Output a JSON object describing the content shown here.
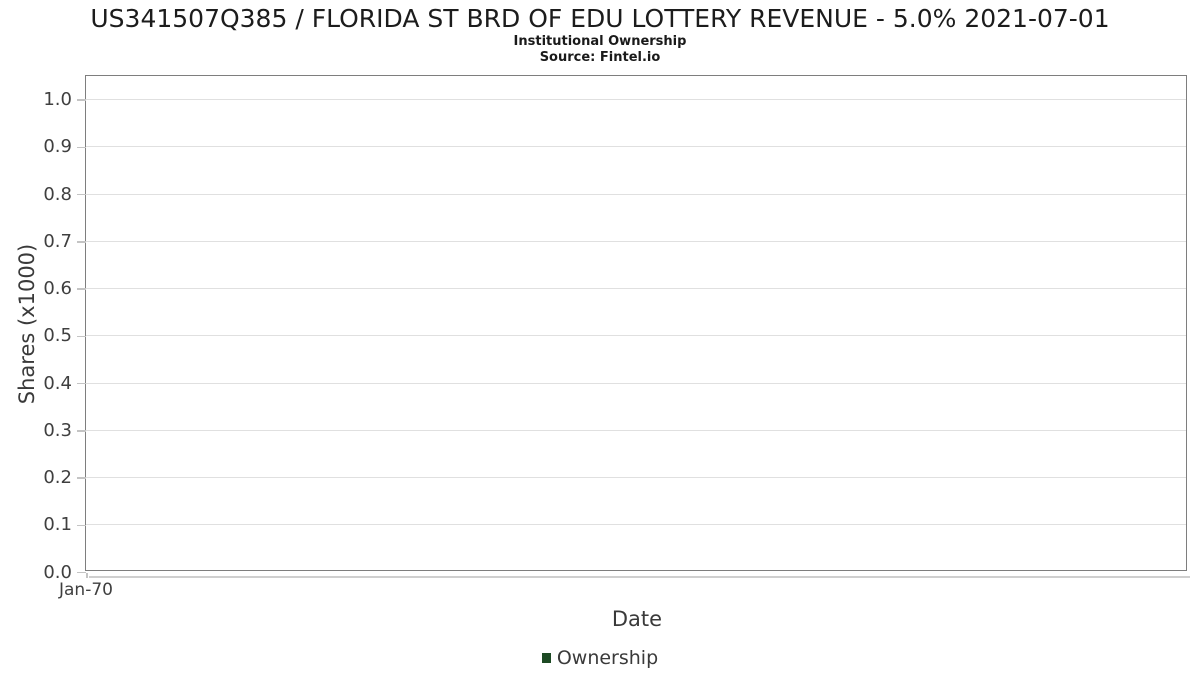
{
  "header": {
    "title": "US341507Q385 / FLORIDA ST BRD OF EDU LOTTERY REVENUE - 5.0% 2021-07-01",
    "subtitle": "Institutional Ownership",
    "source": "Source: Fintel.io"
  },
  "chart_data": {
    "type": "line",
    "title": "US341507Q385 / FLORIDA ST BRD OF EDU LOTTERY REVENUE - 5.0% 2021-07-01",
    "subtitle": "Institutional Ownership",
    "source": "Source: Fintel.io",
    "xlabel": "Date",
    "ylabel": "Shares (x1000)",
    "x_ticks": [
      "Jan-70"
    ],
    "y_ticks": [
      "0.0",
      "0.1",
      "0.2",
      "0.3",
      "0.4",
      "0.5",
      "0.6",
      "0.7",
      "0.8",
      "0.9",
      "1.0"
    ],
    "ylim": [
      0,
      1.05
    ],
    "grid": true,
    "legend_position": "bottom-center",
    "legend": [
      {
        "label": "Ownership",
        "color": "#1d4a24"
      }
    ],
    "series": [
      {
        "name": "Ownership",
        "x": [],
        "values": []
      }
    ]
  },
  "colors": {
    "background": "#ffffff",
    "plot_border": "#7e7e7e",
    "gridline": "#e0e0e0",
    "tick": "#c4c4c4",
    "tick_text": "#3f3f3f",
    "title_text": "#1c1c1c",
    "legend_swatch": "#1d4a24"
  }
}
